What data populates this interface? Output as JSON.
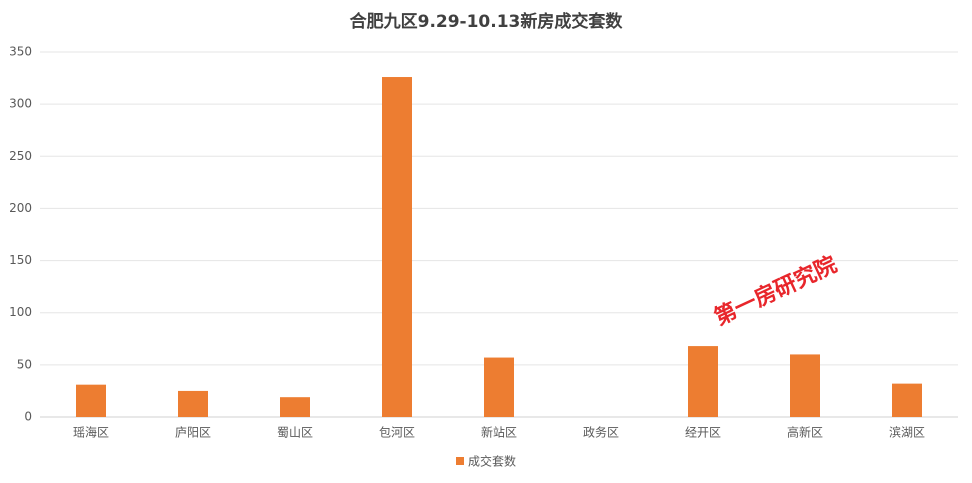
{
  "chart_data": {
    "type": "bar",
    "title": "合肥九区9.29-10.13新房成交套数",
    "categories": [
      "瑶海区",
      "庐阳区",
      "蜀山区",
      "包河区",
      "新站区",
      "政务区",
      "经开区",
      "高新区",
      "滨湖区"
    ],
    "series": [
      {
        "name": "成交套数",
        "color": "#ed7d31",
        "values": [
          31,
          25,
          19,
          326,
          57,
          0,
          68,
          60,
          32
        ]
      }
    ],
    "ylim": [
      0,
      350
    ],
    "yticks": [
      0,
      50,
      100,
      150,
      200,
      250,
      300,
      350
    ],
    "grid": true,
    "legend": "bottom",
    "annotation": "第一房研究院"
  }
}
